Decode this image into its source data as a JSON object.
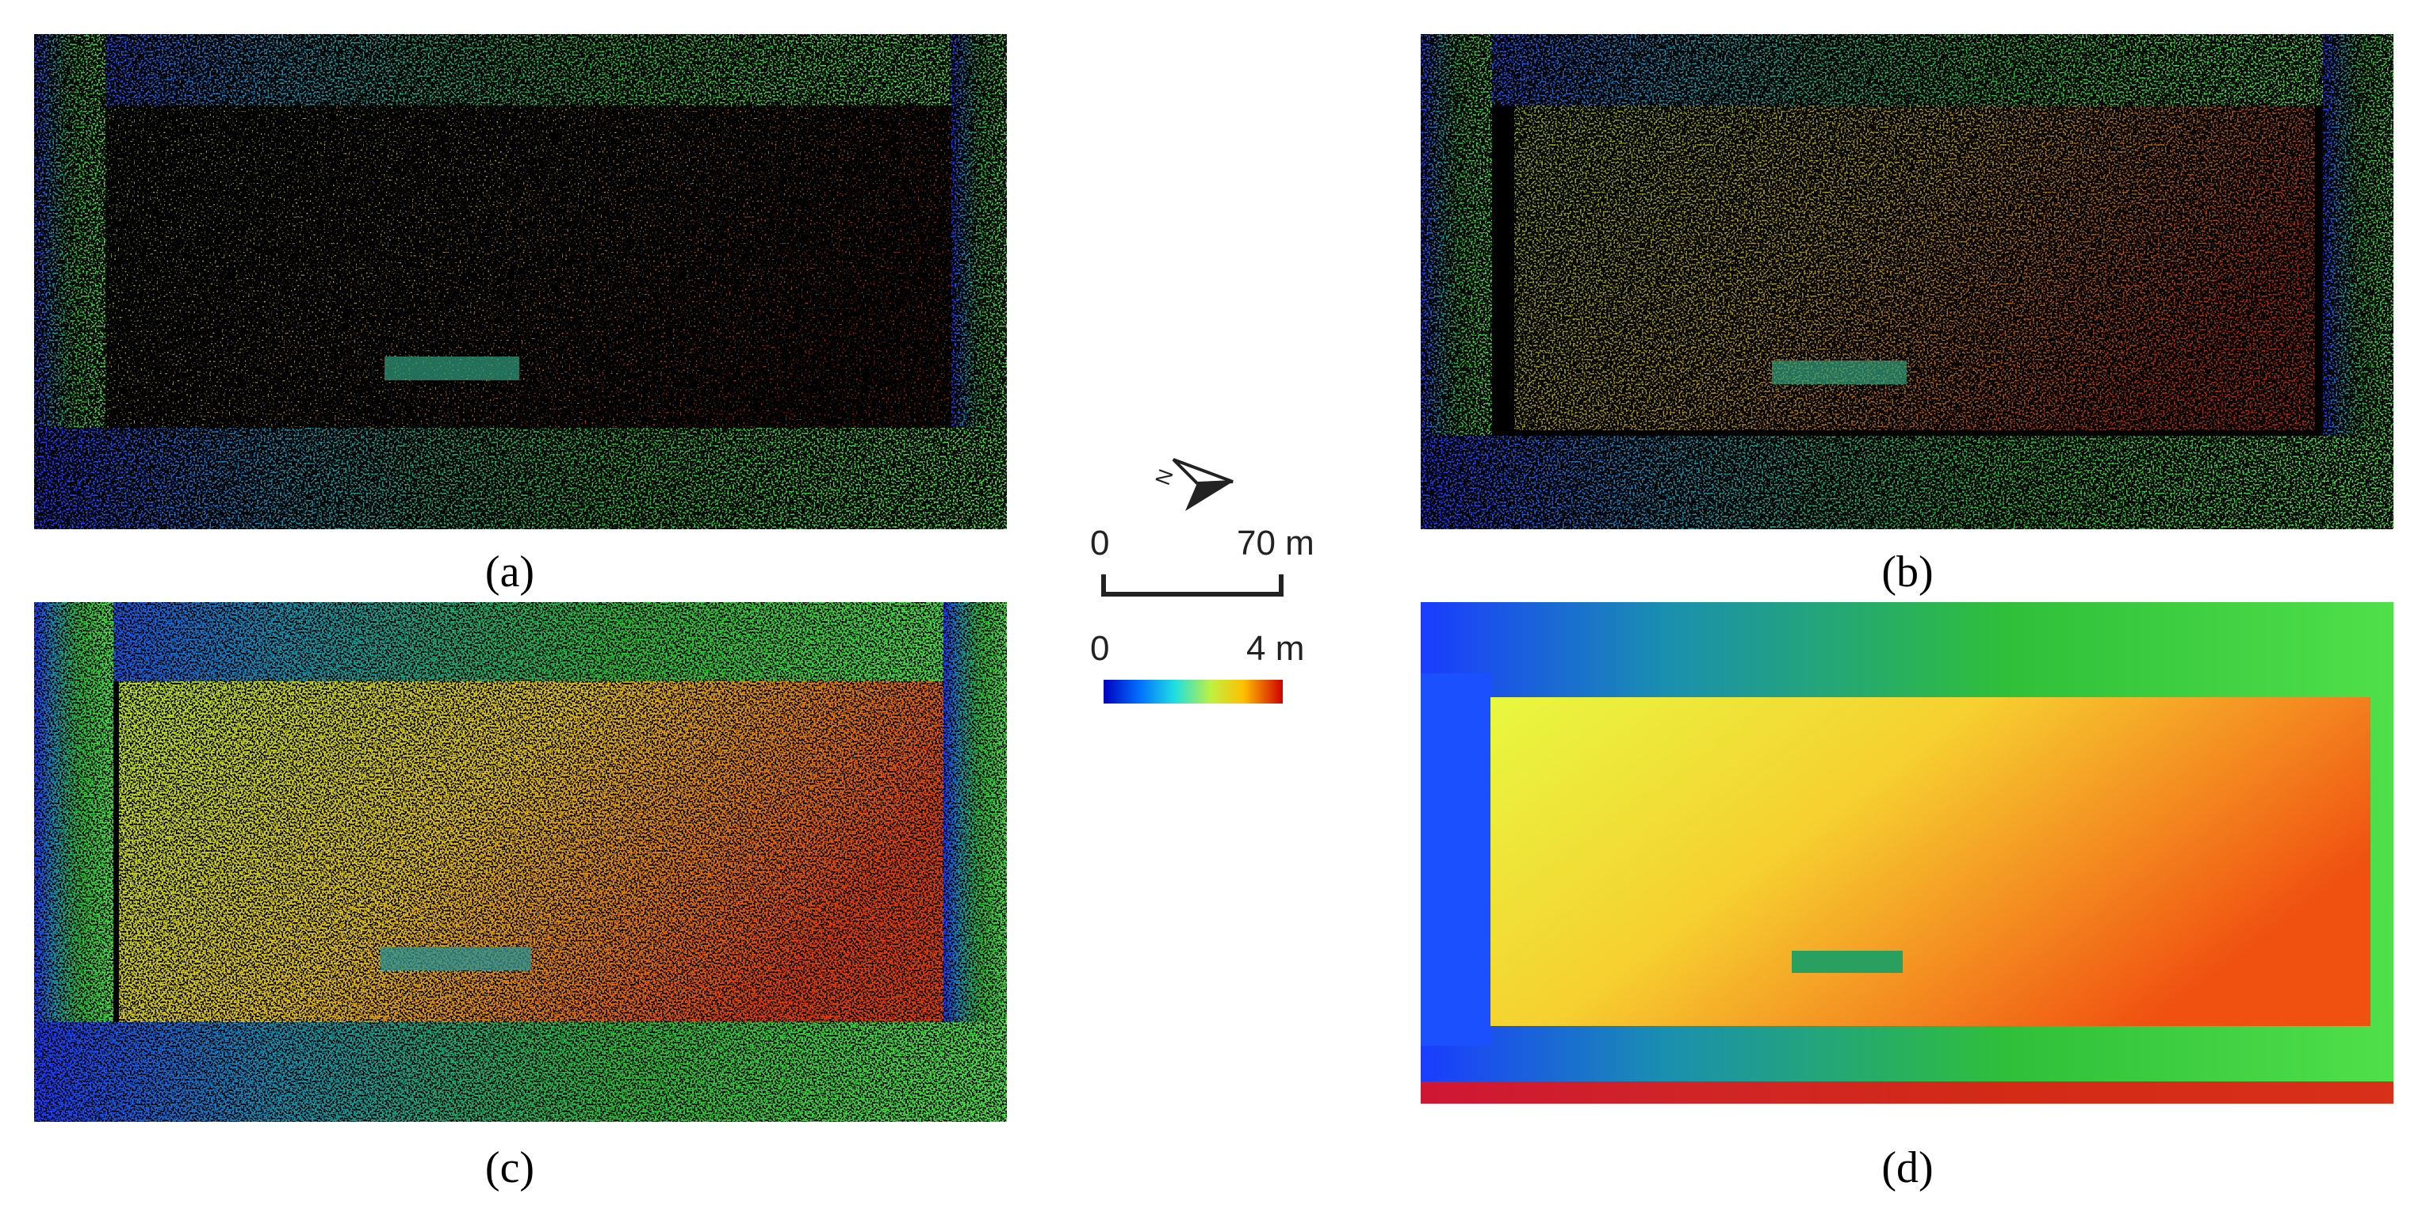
{
  "panels": [
    {
      "label": "(a)"
    },
    {
      "label": "(b)"
    },
    {
      "label": "(c)"
    },
    {
      "label": "(d)"
    }
  ],
  "legend": {
    "north": "N",
    "distance_start": "0",
    "distance_end": "70 m",
    "height_start": "0",
    "height_end": "4 m"
  }
}
